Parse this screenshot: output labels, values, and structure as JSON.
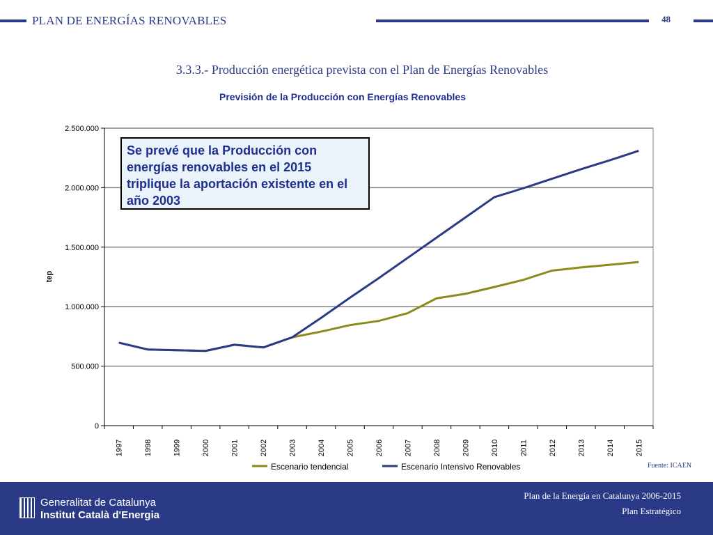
{
  "header": {
    "title": "PLAN DE ENERGÍAS RENOVABLES",
    "page_number": "48"
  },
  "section_title": "3.3.3.- Producción energética prevista con el Plan de Energías Renovables",
  "chart_data": {
    "type": "line",
    "title": "Previsión de la Producción con Energías Renovables",
    "xlabel": "",
    "ylabel": "tep",
    "categories": [
      "1997",
      "1998",
      "1999",
      "2000",
      "2001",
      "2002",
      "2003",
      "2004",
      "2005",
      "2006",
      "2007",
      "2008",
      "2009",
      "2010",
      "2011",
      "2012",
      "2013",
      "2014",
      "2015"
    ],
    "ylim": [
      0,
      2500000
    ],
    "yticks": [
      0,
      500000,
      1000000,
      1500000,
      2000000,
      2500000
    ],
    "ytick_labels": [
      "0",
      "500.000",
      "1.000.000",
      "1.500.000",
      "2.000.000",
      "2.500.000"
    ],
    "grid": true,
    "legend_position": "bottom",
    "series": [
      {
        "name": "Escenario tendencial",
        "color": "#8b8b1a",
        "values": [
          697000,
          640000,
          634000,
          628000,
          680000,
          657000,
          742000,
          790000,
          845000,
          880000,
          945000,
          1070000,
          1108000,
          1165000,
          1225000,
          1303000,
          1330000,
          1352000,
          1375000
        ]
      },
      {
        "name": "Escenario Intensivo Renovables",
        "color": "#2b3a86",
        "values": [
          697000,
          640000,
          634000,
          628000,
          680000,
          657000,
          742000,
          905000,
          1075000,
          1240000,
          1410000,
          1580000,
          1750000,
          1920000,
          1995000,
          2075000,
          2155000,
          2230000,
          2310000
        ]
      }
    ]
  },
  "annotation": "Se prevé que la Producción con energías renovables en el 2015 triplique la aportación existente en el año 2003",
  "source": "Fuente: ICAEN",
  "footer": {
    "org_line1": "Generalitat de Catalunya",
    "org_line2": "Institut Català d'Energia",
    "plan_line1": "Plan de la Energía en Catalunya 2006-2015",
    "plan_line2": "Plan Estratégico"
  }
}
